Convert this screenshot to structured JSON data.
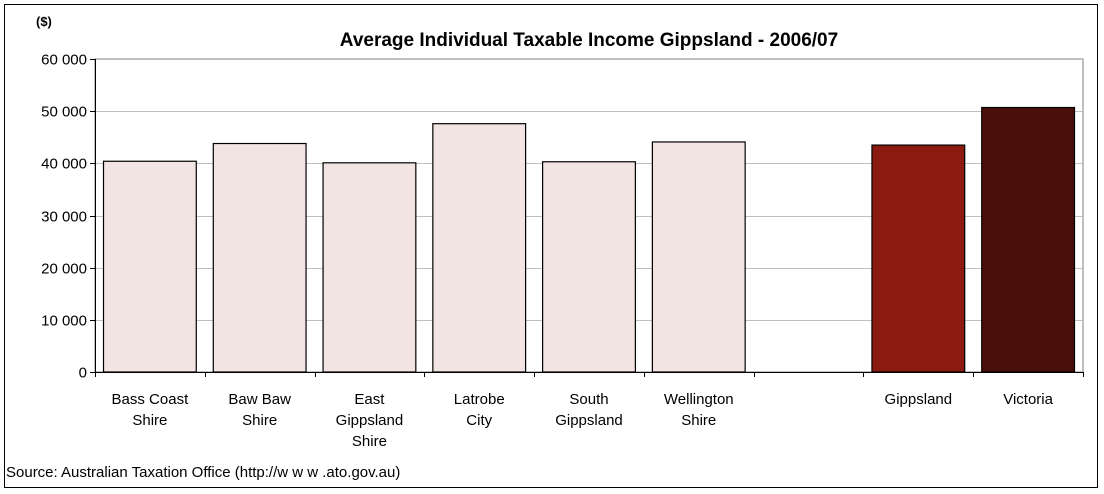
{
  "unit_label": "($)",
  "source": "Source: Australian Taxation Office (http://w w w .ato.gov.au)",
  "chart_data": {
    "type": "bar",
    "title": "Average Individual Taxable Income Gippsland - 2006/07",
    "categories": [
      [
        "Bass Coast",
        "Shire"
      ],
      [
        "Baw  Baw",
        "Shire"
      ],
      [
        "East",
        "Gippsland",
        "Shire"
      ],
      [
        "Latrobe",
        "City"
      ],
      [
        "South",
        "Gippsland"
      ],
      [
        "Wellington",
        "Shire"
      ],
      [],
      [
        "Gippsland"
      ],
      [
        "Victoria"
      ]
    ],
    "values": [
      40400,
      43800,
      40100,
      47600,
      40300,
      44100,
      null,
      43500,
      50700
    ],
    "bar_colors": [
      "#f2e4e2",
      "#f2e4e2",
      "#f2e4e2",
      "#f2e4e2",
      "#f2e4e2",
      "#f2e4e2",
      null,
      "#8b1a10",
      "#4a0f08"
    ],
    "ylim": [
      0,
      60000
    ],
    "yticks": [
      0,
      10000,
      20000,
      30000,
      40000,
      50000,
      60000
    ],
    "ytick_labels": [
      "0",
      "10 000",
      "20 000",
      "30 000",
      "40 000",
      "50 000",
      "60 000"
    ],
    "grid": true,
    "legend": "none"
  }
}
